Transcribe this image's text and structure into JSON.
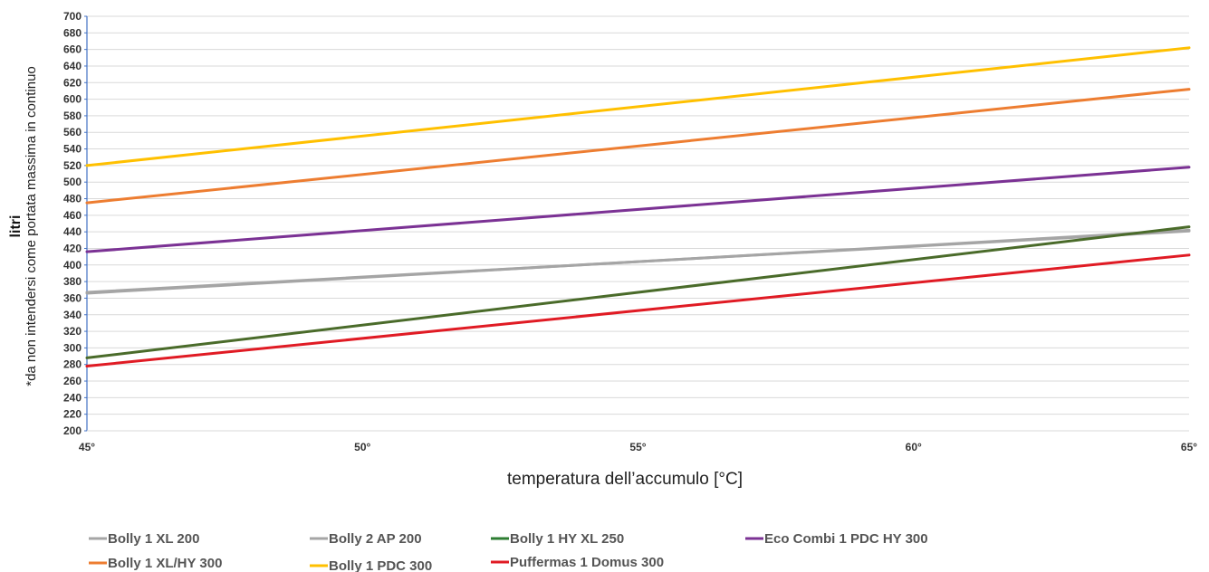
{
  "chart_data": {
    "type": "line",
    "title": "",
    "xlabel": "temperatura dell’accumulo [°C]",
    "ylabel": "litri",
    "ylabel_note": "*da non intendersi come portata massima in continuo",
    "x": [
      45,
      65
    ],
    "x_ticks": [
      "45°",
      "50°",
      "55°",
      "60°",
      "65°"
    ],
    "xlim": [
      45,
      65
    ],
    "ylim": [
      200,
      700
    ],
    "y_step": 20,
    "grid": true,
    "legend_position": "bottom",
    "series": [
      {
        "name": "Bolly 1 XL 200",
        "color": "#a5a5a5",
        "values": [
          367,
          441
        ]
      },
      {
        "name": "Bolly 2 AP 200",
        "color": "#a5a5a5",
        "values": [
          366,
          442
        ]
      },
      {
        "name": "Bolly 1 HY XL 250",
        "color": "#2e7d32",
        "values": [
          288,
          446
        ],
        "stroke_color": "#4a6b2a"
      },
      {
        "name": "Eco Combi 1 PDC HY 300",
        "color": "#7b3294",
        "values": [
          416,
          518
        ]
      },
      {
        "name": "Bolly 1 XL/HY 300",
        "color": "#ed7d31",
        "values": [
          475,
          612
        ]
      },
      {
        "name": "Bolly 1 PDC 300",
        "color": "#ffc000",
        "values": [
          520,
          662
        ]
      },
      {
        "name": "Puffermas 1 Domus 300",
        "color": "#e01b24",
        "values": [
          278,
          412
        ]
      }
    ]
  }
}
